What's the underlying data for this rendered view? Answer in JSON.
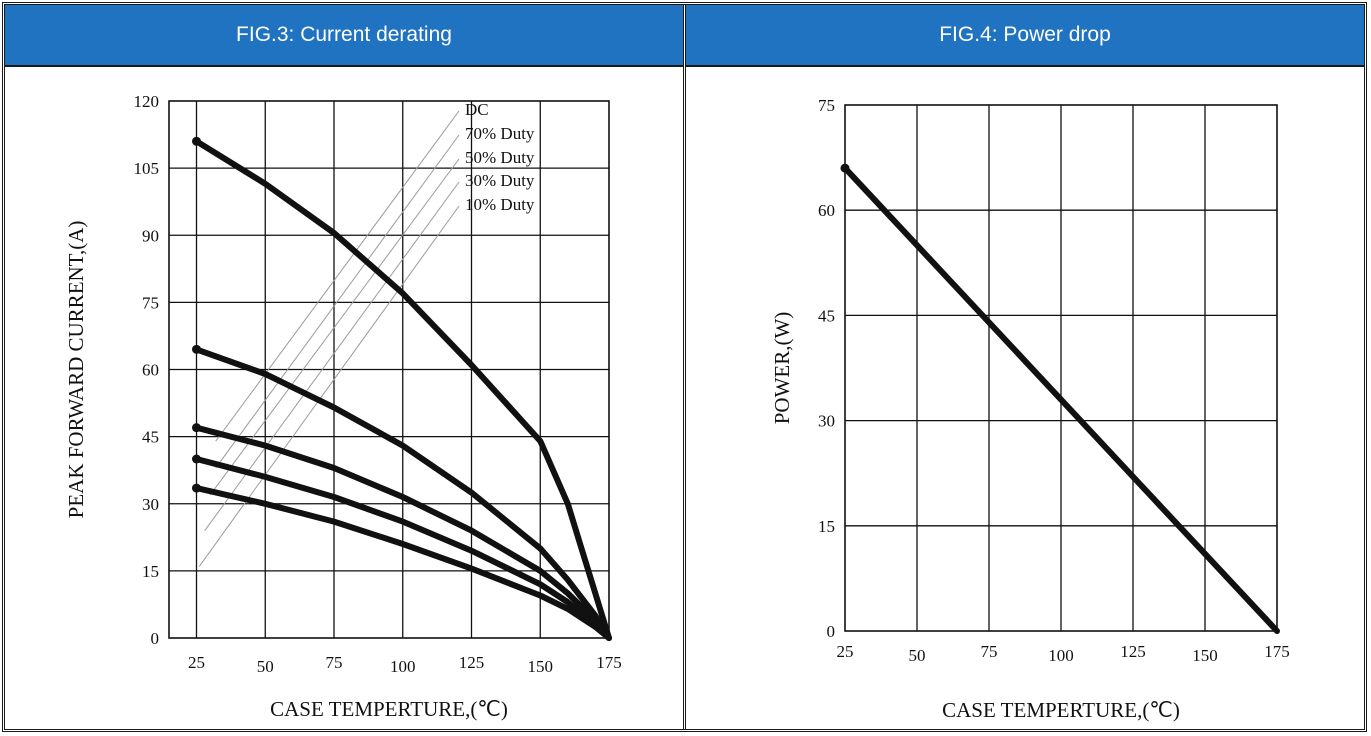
{
  "colors": {
    "header_bg": "#1f73c1",
    "header_text": "#ffffff",
    "line": "#111111",
    "grid": "#111111"
  },
  "chart_data": [
    {
      "type": "line",
      "title": "FIG.3: Current derating",
      "xlabel": "CASE TEMPERTURE,(℃)",
      "ylabel": "PEAK FORWARD CURRENT,(A)",
      "xlim": [
        15,
        175
      ],
      "ylim": [
        0,
        120
      ],
      "xticks": [
        25,
        50,
        75,
        100,
        125,
        150,
        175
      ],
      "yticks": [
        0,
        15,
        30,
        45,
        60,
        75,
        90,
        105,
        120
      ],
      "grid": true,
      "legend_position": "top-right",
      "series": [
        {
          "name": "DC",
          "x": [
            25,
            50,
            75,
            100,
            125,
            150,
            160,
            165,
            170,
            175
          ],
          "y": [
            111,
            101.5,
            90.5,
            77,
            61,
            44,
            30,
            20,
            10,
            0
          ]
        },
        {
          "name": "70% Duty",
          "x": [
            25,
            50,
            75,
            100,
            125,
            150,
            160,
            165,
            170,
            175
          ],
          "y": [
            64.5,
            59,
            51.5,
            43,
            32.5,
            20,
            13,
            9,
            5,
            0
          ]
        },
        {
          "name": "50% Duty",
          "x": [
            25,
            50,
            75,
            100,
            125,
            150,
            160,
            165,
            170,
            175
          ],
          "y": [
            47,
            43,
            38,
            31.5,
            24,
            15,
            10,
            7,
            3.5,
            0
          ]
        },
        {
          "name": "30% Duty",
          "x": [
            25,
            50,
            75,
            100,
            125,
            150,
            160,
            165,
            170,
            175
          ],
          "y": [
            40,
            36,
            31.5,
            26,
            19.5,
            12,
            8,
            5.5,
            3,
            0
          ]
        },
        {
          "name": "10% Duty",
          "x": [
            25,
            50,
            75,
            100,
            125,
            150,
            160,
            165,
            170,
            175
          ],
          "y": [
            33.5,
            30,
            26,
            21,
            15.5,
            9.5,
            6.5,
            4.5,
            2.5,
            0
          ]
        }
      ],
      "legend_leaders": [
        {
          "name": "DC",
          "from": [
            56,
            68
          ]
        },
        {
          "name": "70% Duty",
          "from": [
            56,
            62
          ]
        },
        {
          "name": "50% Duty",
          "from": [
            54,
            56
          ]
        },
        {
          "name": "30% Duty",
          "from": [
            52,
            48
          ]
        },
        {
          "name": "10% Duty",
          "from": [
            50,
            40
          ]
        }
      ]
    },
    {
      "type": "line",
      "title": "FIG.4: Power drop",
      "xlabel": "CASE TEMPERTURE,(℃)",
      "ylabel": "POWER,(W)",
      "xlim": [
        25,
        175
      ],
      "ylim": [
        0,
        75
      ],
      "xticks": [
        25,
        50,
        75,
        100,
        125,
        150,
        175
      ],
      "yticks": [
        0,
        15,
        30,
        45,
        60,
        75
      ],
      "grid": true,
      "series": [
        {
          "name": "",
          "x": [
            25,
            175
          ],
          "y": [
            66,
            0
          ]
        }
      ]
    }
  ]
}
